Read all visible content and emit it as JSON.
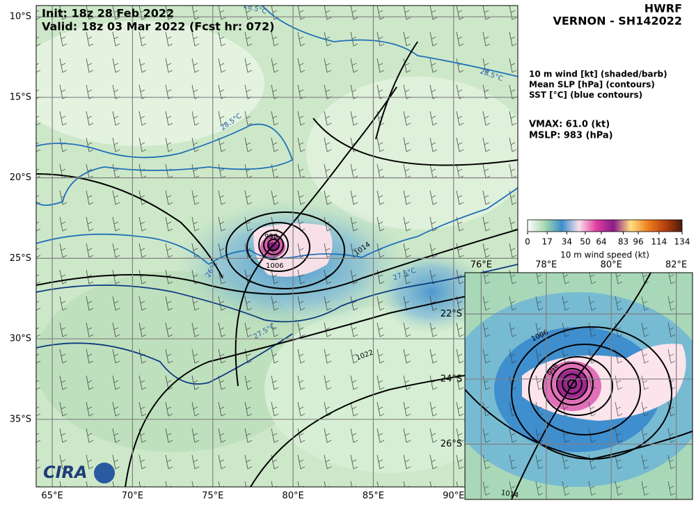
{
  "header": {
    "model": "HWRF",
    "storm": "VERNON - SH142022",
    "init": "Init:  18z 28 Feb 2022",
    "valid": "Valid: 18z 03 Mar 2022 (Fcst hr: 072)"
  },
  "legend": {
    "lines": [
      "10 m wind [kt] (shaded/barb)",
      "Mean SLP [hPa] (contours)",
      "SST [°C] (blue contours)"
    ],
    "vmax": "VMAX:  61.0 (kt)",
    "mslp": "MSLP:  983 (hPa)"
  },
  "colorbar": {
    "label": "10 m wind speed (kt)",
    "range": [
      0,
      134
    ],
    "ticks": [
      0,
      17,
      34,
      50,
      64,
      83,
      96,
      114,
      134
    ],
    "colors": [
      "#ffffff",
      "#a8d8b0",
      "#3b8fcc",
      "#fbe0ea",
      "#e040a0",
      "#8a1a8a",
      "#ffe080",
      "#f08020",
      "#b84010",
      "#4a1a08"
    ]
  },
  "main_map": {
    "lon_range": [
      64,
      94
    ],
    "lat_range": [
      -9.3,
      -39.2
    ],
    "lon_ticks": [
      {
        "value": 65,
        "label": "65°E"
      },
      {
        "value": 70,
        "label": "70°E"
      },
      {
        "value": 75,
        "label": "75°E"
      },
      {
        "value": 80,
        "label": "80°E"
      },
      {
        "value": 85,
        "label": "85°E"
      },
      {
        "value": 90,
        "label": "90°E"
      }
    ],
    "lat_ticks": [
      {
        "value": -10,
        "label": "10°S"
      },
      {
        "value": -15,
        "label": "15°S"
      },
      {
        "value": -20,
        "label": "20°S"
      },
      {
        "value": -25,
        "label": "25°S"
      },
      {
        "value": -30,
        "label": "30°S"
      },
      {
        "value": -35,
        "label": "35°S"
      }
    ],
    "contour_labels": [
      "1014",
      "1006",
      "998",
      "1022",
      "1014",
      "28.5°C",
      "28.5°C",
      "26°C",
      "27.5°C",
      "27.5°C",
      "28.5°C"
    ]
  },
  "inset": {
    "lon_range": [
      75.5,
      82.5
    ],
    "lat_range": [
      -20.73,
      -27.7
    ],
    "lon_ticks": [
      {
        "value": 76,
        "label": "76°E"
      },
      {
        "value": 78,
        "label": "78°E"
      },
      {
        "value": 80,
        "label": "80°E"
      },
      {
        "value": 82,
        "label": "82°E"
      }
    ],
    "lat_ticks": [
      {
        "value": -22,
        "label": "22°S"
      },
      {
        "value": -24,
        "label": "24°S"
      },
      {
        "value": -26,
        "label": "26°S"
      }
    ],
    "contour_labels": [
      "1006",
      "998",
      "1014"
    ]
  },
  "logo": "CIRA"
}
